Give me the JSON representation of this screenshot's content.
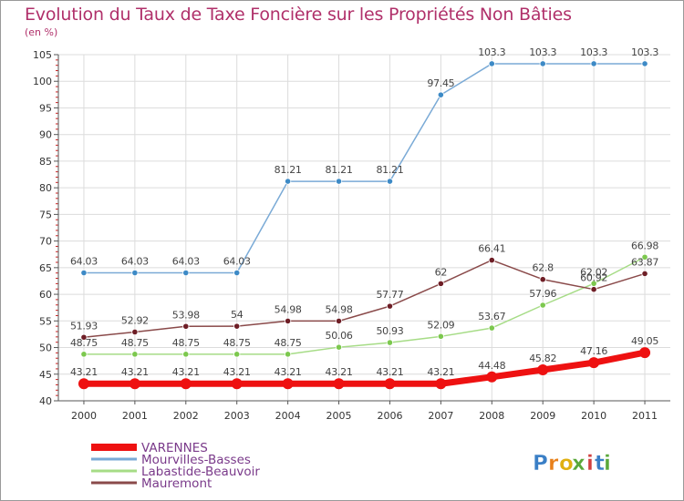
{
  "title": "Evolution du Taux de Taxe Foncière sur les Propriétés Non Bâties",
  "unit_label": "(en %)",
  "logo": {
    "text": "Proxiti",
    "letters": [
      "P",
      "r",
      "o",
      "x",
      "i",
      "t",
      "i"
    ],
    "colors": [
      "#3a7fc6",
      "#e8801a",
      "#e0b010",
      "#5aa83a",
      "#d04040",
      "#3a7fc6",
      "#5aa83a"
    ]
  },
  "chart_data": {
    "type": "line",
    "title": "Evolution du Taux de Taxe Foncière sur les Propriétés Non Bâties",
    "ylabel": "(en %)",
    "xlabel": "",
    "x": [
      "2000",
      "2001",
      "2002",
      "2003",
      "2004",
      "2005",
      "2006",
      "2007",
      "2008",
      "2009",
      "2010",
      "2011"
    ],
    "ylim": [
      40,
      105
    ],
    "yticks": [
      40,
      45,
      50,
      55,
      60,
      65,
      70,
      75,
      80,
      85,
      90,
      95,
      100,
      105
    ],
    "grid": true,
    "legend_position": "bottom-left",
    "series": [
      {
        "name": "VARENNES",
        "color": "#ee1111",
        "point_color": "#ee1111",
        "width": 7,
        "marker": 6,
        "values": [
          43.21,
          43.21,
          43.21,
          43.21,
          43.21,
          43.21,
          43.21,
          43.21,
          44.48,
          45.82,
          47.16,
          49.05
        ],
        "labels": [
          "43.21",
          "43.21",
          "43.21",
          "43.21",
          "43.21",
          "43.21",
          "43.21",
          "43.21",
          "44.48",
          "45.82",
          "47.16",
          "49.05"
        ]
      },
      {
        "name": "Mourvilles-Basses",
        "color": "#7aaad6",
        "point_color": "#3d8ac6",
        "width": 1.5,
        "marker": 3.2,
        "values": [
          64.03,
          64.03,
          64.03,
          64.03,
          81.21,
          81.21,
          81.21,
          97.45,
          103.3,
          103.3,
          103.3,
          103.3
        ],
        "labels": [
          "64.03",
          "64.03",
          "64.03",
          "64.03",
          "81.21",
          "81.21",
          "81.21",
          "97.45",
          "103.3",
          "103.3",
          "103.3",
          "103.3"
        ]
      },
      {
        "name": "Labastide-Beauvoir",
        "color": "#a6dc86",
        "point_color": "#7cc84e",
        "width": 1.5,
        "marker": 3.2,
        "values": [
          48.75,
          48.75,
          48.75,
          48.75,
          48.75,
          50.06,
          50.93,
          52.09,
          53.67,
          57.96,
          62.02,
          66.98
        ],
        "labels": [
          "48.75",
          "48.75",
          "48.75",
          "48.75",
          "48.75",
          "50.06",
          "50.93",
          "52.09",
          "53.67",
          "57.96",
          "62.02",
          "66.98"
        ]
      },
      {
        "name": "Mauremont",
        "color": "#8a4a4a",
        "point_color": "#6e1e26",
        "width": 1.5,
        "marker": 3.2,
        "values": [
          51.93,
          52.92,
          53.98,
          54,
          54.98,
          54.98,
          57.77,
          62,
          66.41,
          62.8,
          60.92,
          63.87
        ],
        "labels": [
          "51.93",
          "52.92",
          "53.98",
          "54",
          "54.98",
          "54.98",
          "57.77",
          "62",
          "66.41",
          "62.8",
          "60.92",
          "63.87"
        ]
      }
    ]
  }
}
